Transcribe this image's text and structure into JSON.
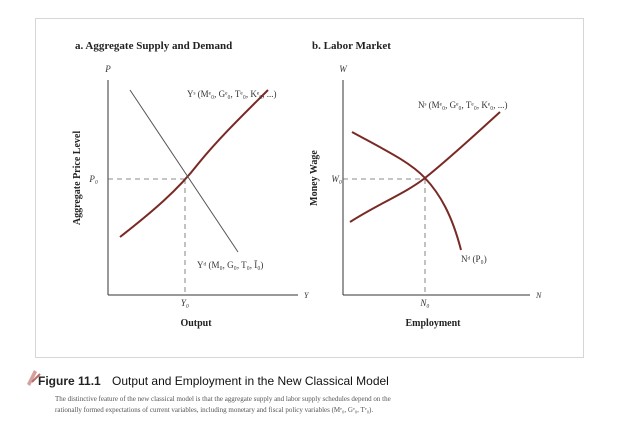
{
  "panel_a": {
    "title": "a.  Aggregate Supply and Demand",
    "y_axis_letter": "P",
    "y_axis_title": "Aggregate Price Level",
    "y_tick": "P₀",
    "x_axis_title": "Output",
    "x_tick": "Y₀",
    "x_axis_letter": "Y",
    "supply_label": "Yˢ (Mᵉ₀, Gᵉ₀, Tᵉ₀, Kᵉ₀, ...)",
    "demand_label": "Yᵈ (M₀, G₀, T₀, Ī₀)"
  },
  "panel_b": {
    "title": "b.  Labor Market",
    "y_axis_letter": "W",
    "y_axis_title": "Money Wage",
    "y_tick": "W₀",
    "x_axis_title": "Employment",
    "x_tick": "N₀",
    "x_axis_letter": "N",
    "supply_label": "Nˢ (Mᵉ₀, Gᵉ₀, Tᵉ₀, Kᵉ₀, ...)",
    "demand_label": "Nᵈ (P₀)"
  },
  "caption": {
    "figure": "Figure 11.1",
    "title": "Output and Employment in the New Classical Model",
    "line1": "The distinctive feature of the new classical model is that the aggregate supply and labor supply schedules depend on the",
    "line2": "rationally formed expectations of current variables, including monetary and fiscal policy variables (Mᵉ₀, Gᵉ₀, Tᵉ₀)."
  },
  "colors": {
    "curve": "#7a2a24",
    "line": "#333333",
    "accent": "#c98a86"
  }
}
